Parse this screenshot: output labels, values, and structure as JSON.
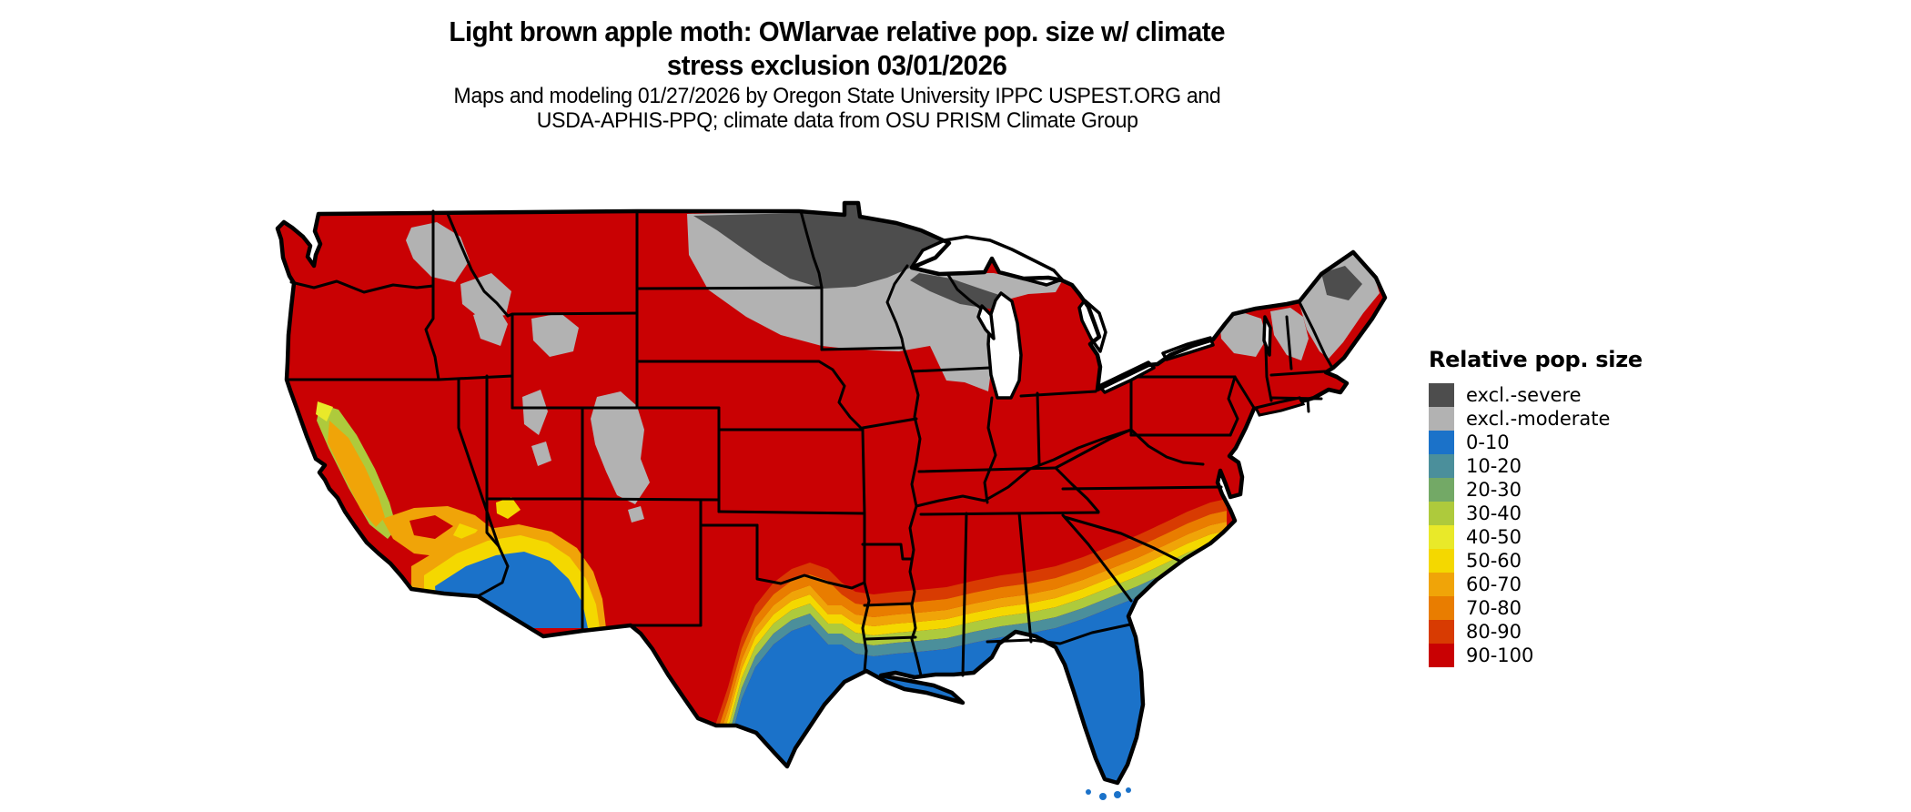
{
  "title": {
    "line1": "Light brown apple moth: OWlarvae relative pop. size w/ climate",
    "line2": "stress exclusion 03/01/2026"
  },
  "subtitle": {
    "line1": "Maps and modeling 01/27/2026 by Oregon State University IPPC USPEST.ORG and",
    "line2": "USDA-APHIS-PPQ; climate data from OSU PRISM Climate Group"
  },
  "legend": {
    "title": "Relative pop. size",
    "entries": [
      {
        "label": "excl.-severe",
        "color": "#4d4d4d"
      },
      {
        "label": "excl.-moderate",
        "color": "#b2b2b2"
      },
      {
        "label": "0-10",
        "color": "#1b72c9"
      },
      {
        "label": "10-20",
        "color": "#4b8f9b"
      },
      {
        "label": "20-30",
        "color": "#73a966"
      },
      {
        "label": "30-40",
        "color": "#aeca3c"
      },
      {
        "label": "40-50",
        "color": "#e9e929"
      },
      {
        "label": "50-60",
        "color": "#f4d800"
      },
      {
        "label": "60-70",
        "color": "#f0a408"
      },
      {
        "label": "70-80",
        "color": "#e97d00"
      },
      {
        "label": "80-90",
        "color": "#d83b02"
      },
      {
        "label": "90-100",
        "color": "#c90103"
      }
    ]
  },
  "map": {
    "type": "choropleth",
    "area": "conterminous United States with state boundaries",
    "visual_summary": {
      "dominant_class": "90-100 (red) over most of the West, Plains, Midwest, East and mid-South",
      "excl_severe": "northern Minnesota, northern North Dakota border, northern Wisconsin / upper Michigan patches, north-central Maine",
      "excl_moderate": "eastern ND, northeastern SD, MN, WI, upper MI, Rocky Mountain patches (MT, ID, WY, UT, CO), Adirondacks NY, northern VT/NH, most of Maine",
      "low_0_10": "southern Texas, Gulf Coast, Florida, southern Georgia, coastal South Carolina, desert southwest AZ/SE CA, southern CA coast",
      "gradient": "banded transition 10-80 across central Texas and the Deep South; mixed 20-70 mosaic in California Central Valley, Sierra foothills and southern CA"
    }
  }
}
